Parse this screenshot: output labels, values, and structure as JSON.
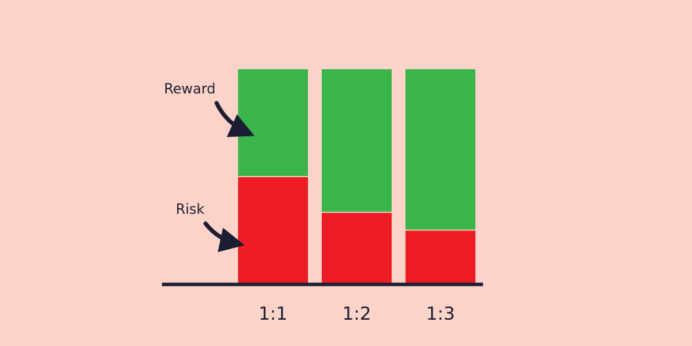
{
  "background_color": "#FCD3C8",
  "chart_data": {
    "type": "bar",
    "stacked": true,
    "categories": [
      "1:1",
      "1:2",
      "1:3"
    ],
    "series": [
      {
        "name": "Risk",
        "values": [
          1,
          1,
          1
        ],
        "color": "#ED1C24"
      },
      {
        "name": "Reward",
        "values": [
          1,
          2,
          3
        ],
        "color": "#3AB54A"
      }
    ],
    "annotations": [
      {
        "text": "Reward",
        "points_to": "Reward",
        "arrow": "curved-arrow"
      },
      {
        "text": "Risk",
        "points_to": "Risk",
        "arrow": "curved-arrow"
      }
    ],
    "axis_color": "#1b1d33",
    "arrow_color": "#1b1d33",
    "grid": false,
    "legend": "none",
    "y_axis_visible": false,
    "normalized_to_total": true
  }
}
